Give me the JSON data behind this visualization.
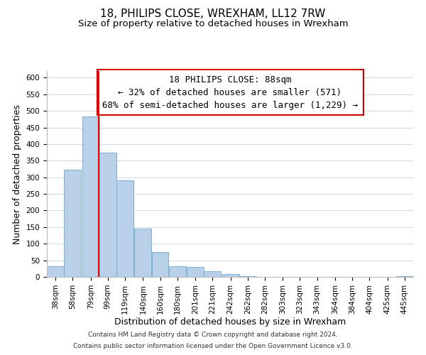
{
  "title": "18, PHILIPS CLOSE, WREXHAM, LL12 7RW",
  "subtitle": "Size of property relative to detached houses in Wrexham",
  "xlabel": "Distribution of detached houses by size in Wrexham",
  "ylabel": "Number of detached properties",
  "bar_left_edges": [
    28,
    48,
    69,
    89,
    109,
    130,
    150,
    170,
    191,
    211,
    232,
    252,
    272,
    293,
    313,
    333,
    354,
    374,
    394,
    415,
    435
  ],
  "bar_heights": [
    32,
    322,
    483,
    375,
    290,
    145,
    75,
    32,
    30,
    18,
    8,
    2,
    1,
    1,
    1,
    1,
    1,
    1,
    1,
    1,
    3
  ],
  "bin_width": 20,
  "tick_labels": [
    "38sqm",
    "58sqm",
    "79sqm",
    "99sqm",
    "119sqm",
    "140sqm",
    "160sqm",
    "180sqm",
    "201sqm",
    "221sqm",
    "242sqm",
    "262sqm",
    "282sqm",
    "303sqm",
    "323sqm",
    "343sqm",
    "364sqm",
    "384sqm",
    "404sqm",
    "425sqm",
    "445sqm"
  ],
  "tick_positions": [
    38,
    58,
    79,
    99,
    119,
    140,
    160,
    180,
    201,
    221,
    242,
    262,
    282,
    303,
    323,
    343,
    364,
    384,
    404,
    425,
    445
  ],
  "bar_color": "#b8d0e8",
  "bar_edge_color": "#7aafd4",
  "red_line_x": 88,
  "ylim": [
    0,
    620
  ],
  "yticks": [
    0,
    50,
    100,
    150,
    200,
    250,
    300,
    350,
    400,
    450,
    500,
    550,
    600
  ],
  "annotation_line1": "18 PHILIPS CLOSE: 88sqm",
  "annotation_line2": "← 32% of detached houses are smaller (571)",
  "annotation_line3": "68% of semi-detached houses are larger (1,229) →",
  "footer_line1": "Contains HM Land Registry data © Crown copyright and database right 2024.",
  "footer_line2": "Contains public sector information licensed under the Open Government Licence v3.0.",
  "background_color": "#ffffff",
  "grid_color": "#d0dce8",
  "annotation_box_color": "#ffffff",
  "annotation_box_edge": "#cc0000",
  "title_fontsize": 11,
  "subtitle_fontsize": 9.5,
  "axis_label_fontsize": 9,
  "tick_fontsize": 7.5,
  "annotation_fontsize": 9,
  "footer_fontsize": 6.5
}
